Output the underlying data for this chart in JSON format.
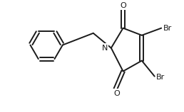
{
  "bg_color": "#ffffff",
  "line_color": "#1a1a1a",
  "text_color": "#1a1a1a",
  "line_width": 1.4,
  "font_size": 8.0,
  "xlim": [
    -2.6,
    1.7
  ],
  "ylim": [
    -1.3,
    1.2
  ]
}
